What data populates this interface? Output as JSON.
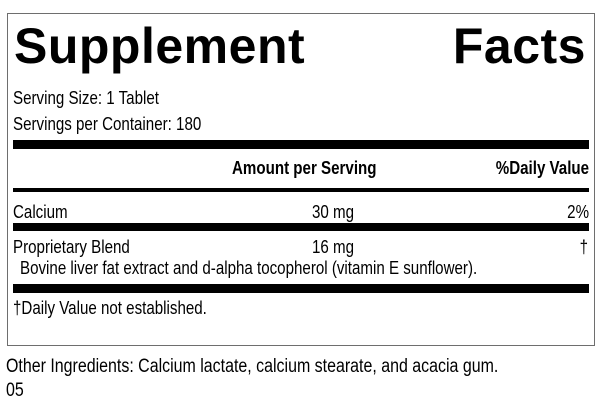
{
  "title": {
    "word1": "Supplement",
    "word2": "Facts"
  },
  "serving_size": "Serving Size: 1 Tablet",
  "servings_per_container": "Servings per Container: 180",
  "table": {
    "headers": {
      "amount": "Amount per Serving",
      "daily_value": "%Daily Value"
    },
    "rows": [
      {
        "name": "Calcium",
        "amount": "30 mg",
        "daily_value": "2%"
      },
      {
        "name": "Proprietary Blend",
        "amount": "16 mg",
        "daily_value": "†",
        "description": "Bovine liver fat extract and d-alpha tocopherol (vitamin E sunflower)."
      }
    ]
  },
  "footnote": "†Daily Value not established.",
  "other_ingredients": "Other Ingredients: Calcium lactate, calcium stearate, and acacia gum.",
  "code": "05"
}
